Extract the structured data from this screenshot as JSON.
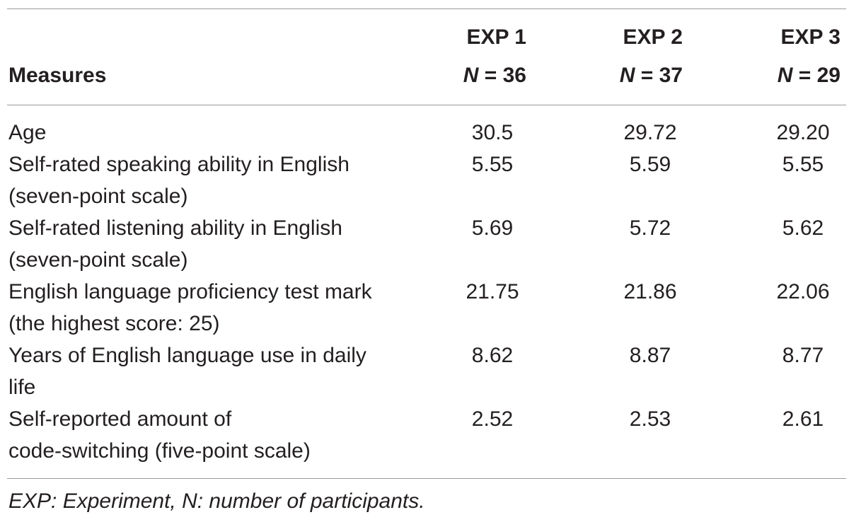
{
  "header": {
    "measures_label": "Measures",
    "columns": [
      {
        "exp": "EXP 1",
        "n_symbol": "N",
        "n_text": " = 36"
      },
      {
        "exp": "EXP 2",
        "n_symbol": "N",
        "n_text": " = 37"
      },
      {
        "exp": "EXP 3",
        "n_symbol": "N",
        "n_text": " = 29"
      }
    ]
  },
  "rows": [
    {
      "label_lines": [
        "Age"
      ],
      "values": [
        "30.5",
        "29.72",
        "29.20"
      ]
    },
    {
      "label_lines": [
        "Self-rated speaking ability in English",
        "(seven-point scale)"
      ],
      "values": [
        "5.55",
        "5.59",
        "5.55"
      ]
    },
    {
      "label_lines": [
        "Self-rated listening ability in English",
        "(seven-point scale)"
      ],
      "values": [
        "5.69",
        "5.72",
        "5.62"
      ]
    },
    {
      "label_lines": [
        "English language proficiency test mark",
        "(the highest score: 25)"
      ],
      "values": [
        "21.75",
        "21.86",
        "22.06"
      ]
    },
    {
      "label_lines": [
        "Years of English language use in daily",
        "life"
      ],
      "values": [
        "8.62",
        "8.87",
        "8.77"
      ]
    },
    {
      "label_lines": [
        "Self-reported amount of",
        "code-switching (five-point scale)"
      ],
      "values": [
        "2.52",
        "2.53",
        "2.61"
      ]
    }
  ],
  "footnote": "EXP: Experiment, N: number of participants."
}
